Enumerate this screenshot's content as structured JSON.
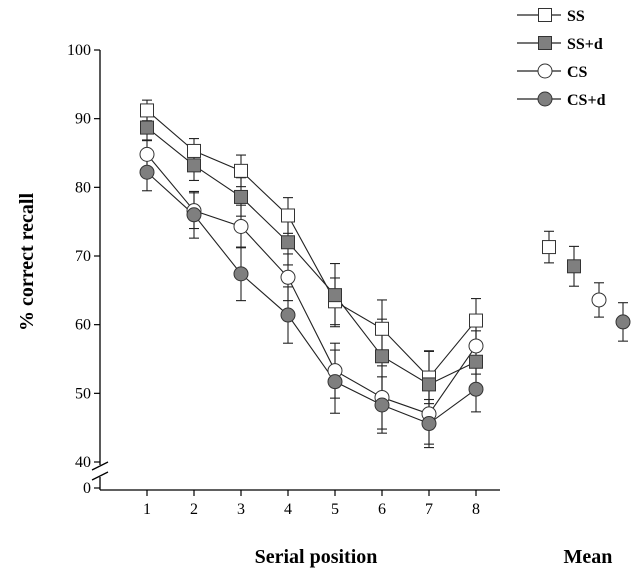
{
  "chart_data": {
    "type": "line",
    "title": "",
    "xlabel": "Serial position",
    "ylabel": "% correct recall",
    "mean_label": "Mean",
    "x": [
      1,
      2,
      3,
      4,
      5,
      6,
      7,
      8
    ],
    "x_tick_labels": [
      "1",
      "2",
      "3",
      "4",
      "5",
      "6",
      "7",
      "8"
    ],
    "ylim": [
      40,
      100
    ],
    "y_ticks": [
      40,
      50,
      60,
      70,
      80,
      90,
      100
    ],
    "y_tick_labels": [
      "40",
      "50",
      "60",
      "70",
      "80",
      "90",
      "100"
    ],
    "y_zero_label": "0",
    "axis_break": true,
    "grid": false,
    "legend_position": "top-right",
    "series": [
      {
        "name": "SS",
        "marker": "square",
        "fill": "#ffffff",
        "values": [
          91.2,
          85.3,
          82.4,
          75.9,
          63.4,
          59.4,
          52.3,
          60.6
        ],
        "errors": [
          1.5,
          1.8,
          2.3,
          2.6,
          3.4,
          4.2,
          3.8,
          3.2
        ],
        "mean": 71.3,
        "mean_error": 2.3
      },
      {
        "name": "SS+d",
        "marker": "square",
        "fill": "#7f7f7f",
        "values": [
          88.7,
          83.2,
          78.6,
          72.0,
          64.3,
          55.4,
          51.3,
          54.6
        ],
        "errors": [
          1.9,
          2.2,
          2.8,
          3.3,
          4.6,
          5.4,
          4.9,
          4.5
        ],
        "mean": 68.5,
        "mean_error": 2.9
      },
      {
        "name": "CS",
        "marker": "circle",
        "fill": "#ffffff",
        "values": [
          84.8,
          76.6,
          74.3,
          66.9,
          53.3,
          49.4,
          47.0,
          56.9
        ],
        "errors": [
          2.1,
          2.6,
          3.1,
          3.4,
          4.0,
          4.6,
          4.4,
          4.1
        ],
        "mean": 63.6,
        "mean_error": 2.5
      },
      {
        "name": "CS+d",
        "marker": "circle",
        "fill": "#7f7f7f",
        "values": [
          82.2,
          76.0,
          67.4,
          61.4,
          51.7,
          48.3,
          45.6,
          50.6
        ],
        "errors": [
          2.7,
          3.4,
          3.9,
          4.1,
          4.6,
          4.1,
          3.5,
          3.3
        ],
        "mean": 60.4,
        "mean_error": 2.8
      }
    ]
  }
}
